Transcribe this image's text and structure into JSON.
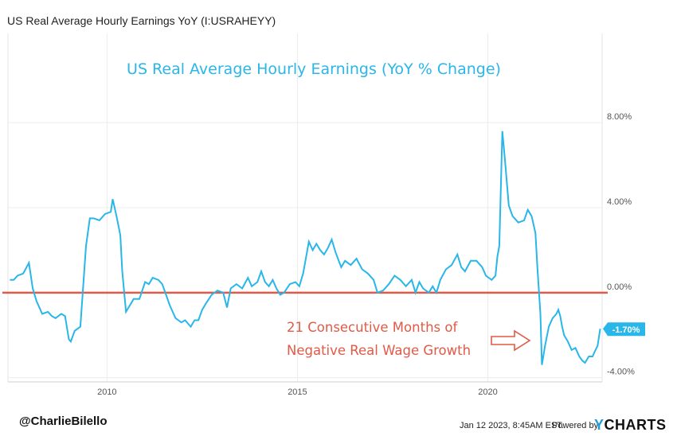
{
  "header": {
    "title": "US Real Average Hourly Earnings YoY (I:USRAHEYY)"
  },
  "footer": {
    "handle": "@CharlieBilello",
    "date": "Jan 12 2023, 8:45AM EST.",
    "powered": "Powered by",
    "brand_y": "Y",
    "brand_rest": "CHARTS"
  },
  "chart_data": {
    "type": "line",
    "title": "US Real Average Hourly Earnings (YoY % Change)",
    "xlabel": "",
    "ylabel": "",
    "xlim": [
      2007.4,
      2023.0
    ],
    "ylim": [
      -4.2,
      12.2
    ],
    "x_ticks": [
      2010,
      2015,
      2020
    ],
    "x_tick_labels": [
      "2010",
      "2015",
      "2020"
    ],
    "y_ticks": [
      8,
      4,
      0,
      -4
    ],
    "y_tick_labels": [
      "8.00%",
      "4.00%",
      "0.00%",
      "-4.00%"
    ],
    "grid": true,
    "reference_line": {
      "y": 0,
      "color": "#e05a47"
    },
    "line_color": "#29b6e8",
    "last_value_label": "-1.70%",
    "last_value": -1.7,
    "annotation": {
      "lines": [
        "21 Consecutive Months of",
        "Negative Real Wage Growth"
      ],
      "color": "#e05a47"
    },
    "series": [
      {
        "values": [
          [
            2007.45,
            0.6
          ],
          [
            2007.55,
            0.6
          ],
          [
            2007.65,
            0.8
          ],
          [
            2007.8,
            0.9
          ],
          [
            2007.95,
            1.4
          ],
          [
            2008.05,
            0.2
          ],
          [
            2008.15,
            -0.4
          ],
          [
            2008.3,
            -1.0
          ],
          [
            2008.45,
            -0.9
          ],
          [
            2008.55,
            -1.1
          ],
          [
            2008.65,
            -1.2
          ],
          [
            2008.8,
            -1.0
          ],
          [
            2008.9,
            -1.1
          ],
          [
            2009.0,
            -2.2
          ],
          [
            2009.05,
            -2.3
          ],
          [
            2009.15,
            -1.8
          ],
          [
            2009.3,
            -1.6
          ],
          [
            2009.45,
            2.2
          ],
          [
            2009.55,
            3.5
          ],
          [
            2009.65,
            3.5
          ],
          [
            2009.8,
            3.4
          ],
          [
            2009.95,
            3.7
          ],
          [
            2010.1,
            3.8
          ],
          [
            2010.15,
            4.4
          ],
          [
            2010.25,
            3.6
          ],
          [
            2010.35,
            2.7
          ],
          [
            2010.4,
            1.0
          ],
          [
            2010.5,
            -0.9
          ],
          [
            2010.6,
            -0.6
          ],
          [
            2010.7,
            -0.3
          ],
          [
            2010.85,
            -0.3
          ],
          [
            2011.0,
            0.5
          ],
          [
            2011.1,
            0.4
          ],
          [
            2011.2,
            0.7
          ],
          [
            2011.35,
            0.6
          ],
          [
            2011.45,
            0.4
          ],
          [
            2011.55,
            -0.1
          ],
          [
            2011.65,
            -0.6
          ],
          [
            2011.8,
            -1.2
          ],
          [
            2011.95,
            -1.4
          ],
          [
            2012.05,
            -1.3
          ],
          [
            2012.2,
            -1.6
          ],
          [
            2012.3,
            -1.3
          ],
          [
            2012.4,
            -1.3
          ],
          [
            2012.5,
            -0.8
          ],
          [
            2012.6,
            -0.5
          ],
          [
            2012.75,
            -0.1
          ],
          [
            2012.9,
            0.1
          ],
          [
            2013.05,
            0.0
          ],
          [
            2013.15,
            -0.7
          ],
          [
            2013.25,
            0.2
          ],
          [
            2013.4,
            0.4
          ],
          [
            2013.55,
            0.2
          ],
          [
            2013.7,
            0.7
          ],
          [
            2013.8,
            0.3
          ],
          [
            2013.95,
            0.5
          ],
          [
            2014.05,
            1.0
          ],
          [
            2014.15,
            0.5
          ],
          [
            2014.25,
            0.3
          ],
          [
            2014.35,
            0.6
          ],
          [
            2014.45,
            0.2
          ],
          [
            2014.55,
            -0.1
          ],
          [
            2014.65,
            0.0
          ],
          [
            2014.8,
            0.4
          ],
          [
            2014.95,
            0.5
          ],
          [
            2015.05,
            0.3
          ],
          [
            2015.15,
            0.9
          ],
          [
            2015.3,
            2.4
          ],
          [
            2015.4,
            2.0
          ],
          [
            2015.5,
            2.3
          ],
          [
            2015.6,
            2.0
          ],
          [
            2015.7,
            1.8
          ],
          [
            2015.8,
            2.1
          ],
          [
            2015.9,
            2.5
          ],
          [
            2016.0,
            1.9
          ],
          [
            2016.15,
            1.2
          ],
          [
            2016.25,
            1.5
          ],
          [
            2016.4,
            1.3
          ],
          [
            2016.55,
            1.6
          ],
          [
            2016.7,
            1.1
          ],
          [
            2016.85,
            0.9
          ],
          [
            2017.0,
            0.6
          ],
          [
            2017.1,
            0.0
          ],
          [
            2017.25,
            0.1
          ],
          [
            2017.4,
            0.4
          ],
          [
            2017.55,
            0.8
          ],
          [
            2017.7,
            0.6
          ],
          [
            2017.85,
            0.3
          ],
          [
            2018.0,
            0.6
          ],
          [
            2018.1,
            0.0
          ],
          [
            2018.2,
            0.5
          ],
          [
            2018.3,
            0.2
          ],
          [
            2018.45,
            0.0
          ],
          [
            2018.55,
            0.3
          ],
          [
            2018.65,
            0.0
          ],
          [
            2018.75,
            0.6
          ],
          [
            2018.9,
            1.1
          ],
          [
            2019.05,
            1.3
          ],
          [
            2019.2,
            1.8
          ],
          [
            2019.3,
            1.2
          ],
          [
            2019.4,
            1.0
          ],
          [
            2019.55,
            1.5
          ],
          [
            2019.7,
            1.5
          ],
          [
            2019.85,
            1.2
          ],
          [
            2019.95,
            0.8
          ],
          [
            2020.1,
            0.6
          ],
          [
            2020.2,
            0.8
          ],
          [
            2020.25,
            1.7
          ],
          [
            2020.3,
            2.2
          ],
          [
            2020.38,
            7.6
          ],
          [
            2020.45,
            6.2
          ],
          [
            2020.55,
            4.1
          ],
          [
            2020.65,
            3.6
          ],
          [
            2020.8,
            3.3
          ],
          [
            2020.95,
            3.4
          ],
          [
            2021.05,
            3.9
          ],
          [
            2021.15,
            3.6
          ],
          [
            2021.25,
            2.8
          ],
          [
            2021.3,
            1.2
          ],
          [
            2021.38,
            -1.0
          ],
          [
            2021.42,
            -3.4
          ],
          [
            2021.5,
            -2.5
          ],
          [
            2021.6,
            -1.6
          ],
          [
            2021.7,
            -1.2
          ],
          [
            2021.8,
            -1.0
          ],
          [
            2021.85,
            -0.8
          ],
          [
            2021.9,
            -1.1
          ],
          [
            2021.95,
            -1.6
          ],
          [
            2022.0,
            -2.0
          ],
          [
            2022.1,
            -2.3
          ],
          [
            2022.2,
            -2.7
          ],
          [
            2022.3,
            -2.6
          ],
          [
            2022.4,
            -3.0
          ],
          [
            2022.48,
            -3.2
          ],
          [
            2022.55,
            -3.3
          ],
          [
            2022.65,
            -3.0
          ],
          [
            2022.75,
            -3.0
          ],
          [
            2022.8,
            -2.8
          ],
          [
            2022.88,
            -2.5
          ],
          [
            2022.95,
            -1.7
          ]
        ]
      }
    ]
  }
}
